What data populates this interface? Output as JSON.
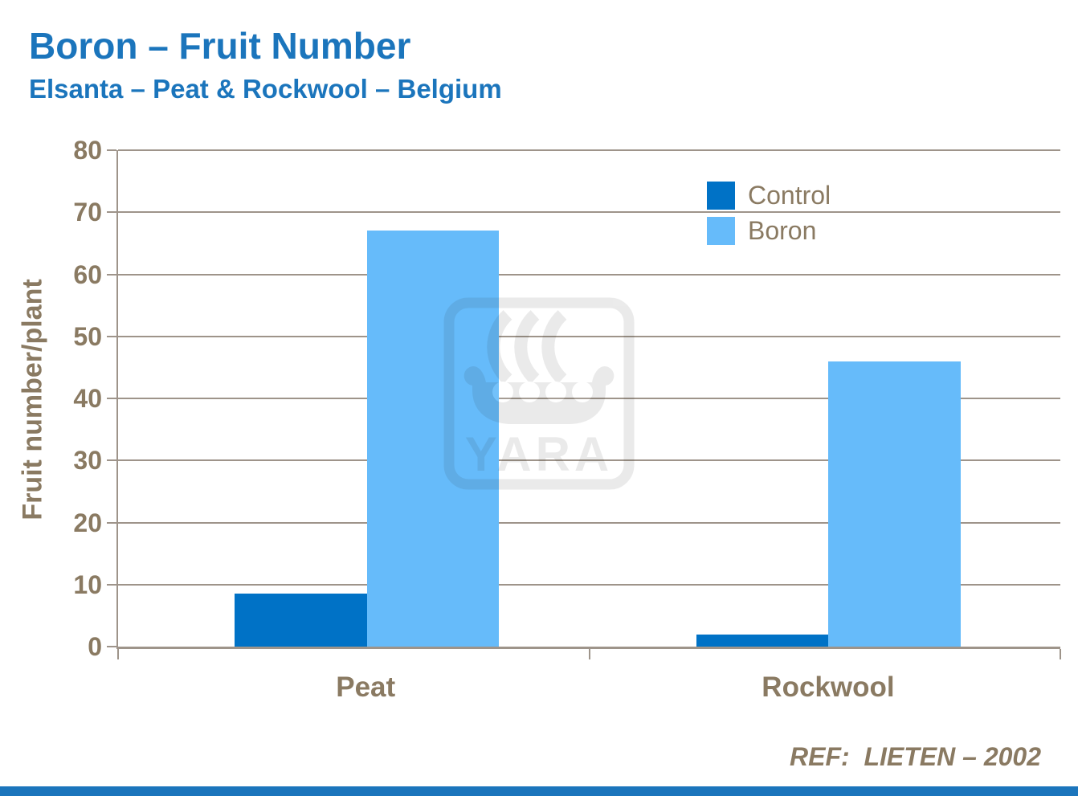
{
  "slide": {
    "title": "Boron – Fruit Number",
    "subtitle": "Elsanta – Peat & Rockwool – Belgium",
    "reference": "REF:  LIETEN – 2002",
    "watermark_text": "YARA",
    "colors": {
      "title_blue": "#1B75BC",
      "control_series": "#0072C6",
      "boron_series": "#66BBFA",
      "axis_gray": "#9E948A",
      "label_brown": "#8A7A62"
    }
  },
  "chart_data": {
    "type": "bar",
    "title": "Boron – Fruit Number",
    "subtitle": "Elsanta – Peat & Rockwool – Belgium",
    "categories": [
      "Peat",
      "Rockwool"
    ],
    "series": [
      {
        "name": "Control",
        "color": "#0072C6",
        "values": [
          8.5,
          2
        ]
      },
      {
        "name": "Boron",
        "color": "#66BBFA",
        "values": [
          67,
          46
        ]
      }
    ],
    "xlabel": "",
    "ylabel": "Fruit number/plant",
    "ylim": [
      0,
      80
    ],
    "ytick_step": 10,
    "yticks": [
      0,
      10,
      20,
      30,
      40,
      50,
      60,
      70,
      80
    ],
    "grid": true,
    "legend_position": "upper-right",
    "annotation": "REF:  LIETEN – 2002"
  }
}
